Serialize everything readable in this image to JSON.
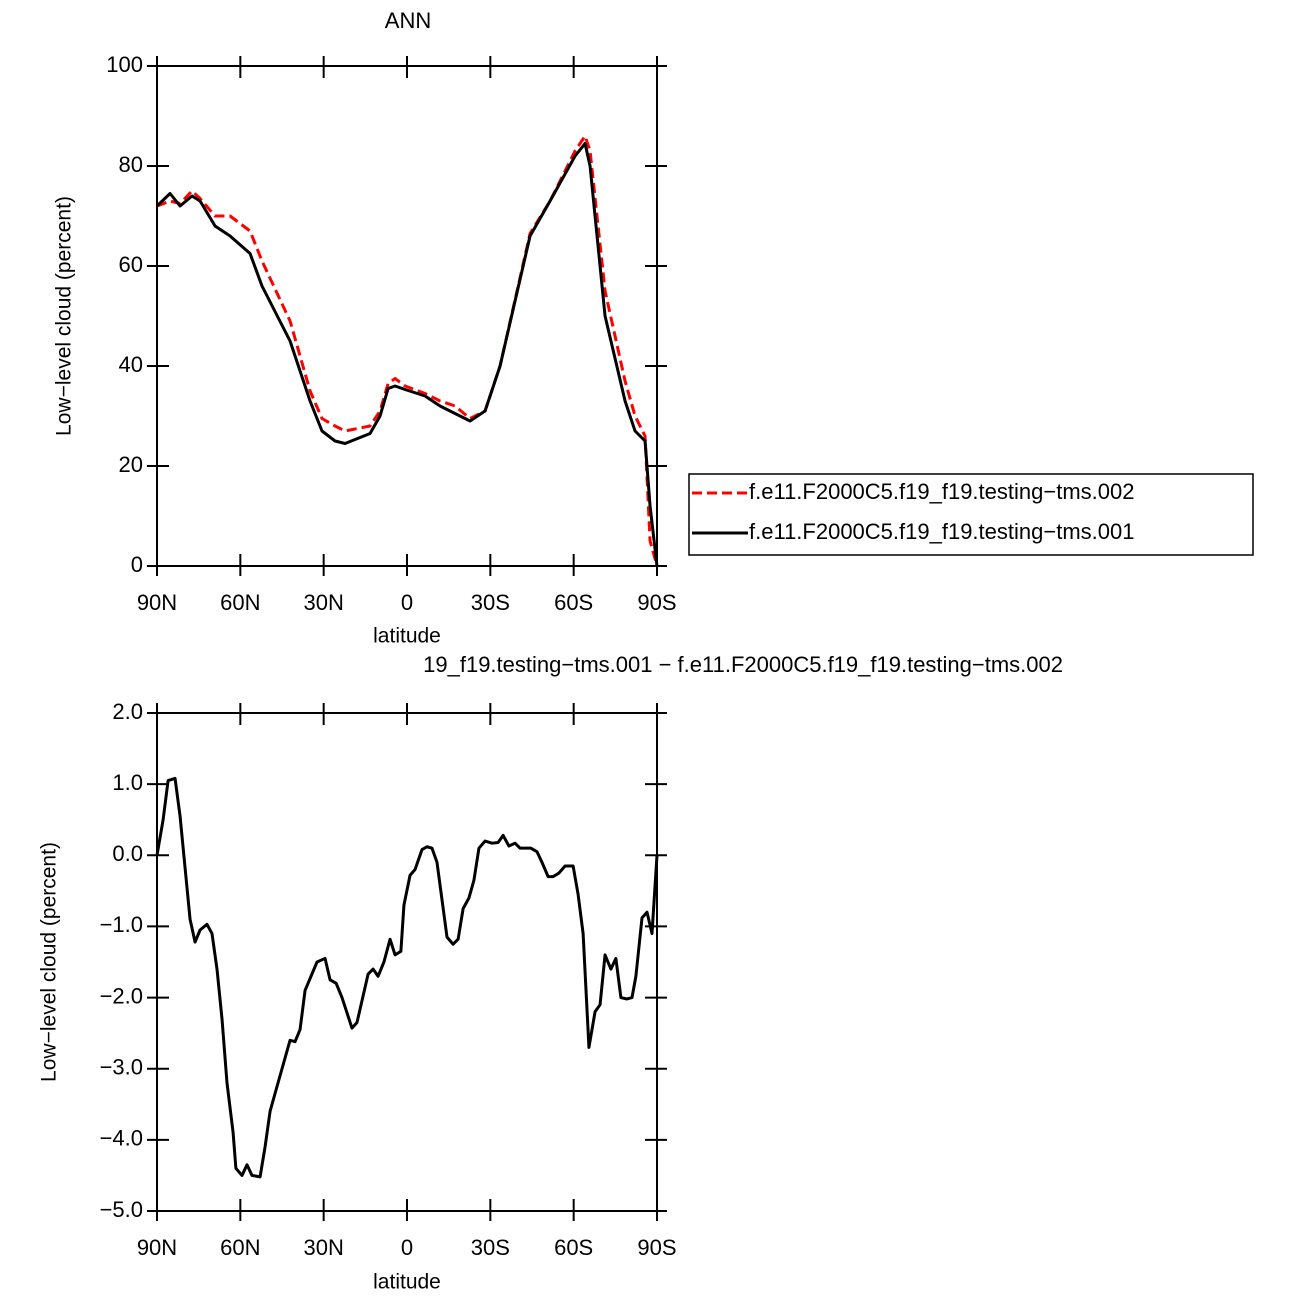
{
  "chart_data": [
    {
      "type": "line",
      "title": "ANN",
      "xlabel": "latitude",
      "ylabel": "Low−level cloud (percent)",
      "x": [
        90,
        85.3,
        81.7,
        77.4,
        74.5,
        69.1,
        63.7,
        56.5,
        52.2,
        42.1,
        34.9,
        30.6,
        25.9,
        22.3,
        13.3,
        9.7,
        6.8,
        4.3,
        0.7,
        -6.5,
        -11.9,
        -17.3,
        -22.7,
        -28.1,
        -33.5,
        -44.3,
        -51.5,
        -60.5,
        -64.1,
        -65.9,
        -71.3,
        -78.5,
        -82.1,
        -85.7,
        -87.5,
        -90
      ],
      "series": [
        {
          "name": "f.e11.F2000C5.f19_f19.testing−tms.002",
          "color": "#ff0000",
          "dash": true,
          "values": [
            72,
            73,
            72.5,
            75,
            73.5,
            70,
            70,
            67,
            61,
            49,
            35,
            29.5,
            28,
            27,
            28,
            31,
            36.5,
            37.5,
            36,
            34.5,
            33,
            32,
            29.5,
            31,
            40,
            66.5,
            73,
            83,
            86,
            83,
            55,
            37,
            30,
            26,
            5,
            0
          ]
        },
        {
          "name": "f.e11.F2000C5.f19_f19.testing−tms.001",
          "color": "#000000",
          "dash": false,
          "values": [
            72,
            74.5,
            72,
            74,
            73,
            68,
            66,
            62.5,
            56,
            45,
            33,
            27,
            25,
            24.5,
            26.5,
            30,
            35.5,
            36,
            35.3,
            34,
            32,
            30.5,
            29,
            31,
            40,
            66,
            73,
            82,
            84.5,
            80,
            50,
            33,
            27,
            25,
            12,
            0
          ]
        }
      ],
      "xlim": [
        90,
        -90
      ],
      "xticks": [
        {
          "value": 90,
          "label": "90N"
        },
        {
          "value": 60,
          "label": "60N"
        },
        {
          "value": 30,
          "label": "30N"
        },
        0,
        {
          "value": -30,
          "label": "30S"
        },
        {
          "value": -60,
          "label": "60S"
        },
        {
          "value": -90,
          "label": "90S"
        }
      ],
      "ylim": [
        0,
        100
      ],
      "yticks": [
        0,
        20,
        40,
        60,
        80,
        100
      ],
      "legend": "right"
    },
    {
      "type": "line",
      "title": "19_f19.testing−tms.001 − f.e11.F2000C5.f19_f19.testing−tms.002",
      "xlabel": "latitude",
      "ylabel": "Low−level cloud (percent)",
      "x": [
        90,
        87.8,
        86.0,
        83.5,
        81.7,
        78.1,
        76.3,
        74.5,
        72.0,
        70.2,
        68.4,
        66.6,
        64.8,
        62.6,
        61.6,
        59.4,
        57.6,
        55.8,
        52.9,
        51.1,
        49.3,
        46.8,
        42.1,
        40.3,
        38.5,
        36.7,
        32.4,
        29.5,
        27.7,
        25.5,
        23.4,
        19.8,
        18.0,
        14.0,
        12.2,
        10.4,
        8.3,
        6.1,
        4.3,
        2.2,
        1.1,
        -1.1,
        -2.9,
        -5.4,
        -7.2,
        -9.0,
        -10.8,
        -14.4,
        -16.6,
        -18.4,
        -20.2,
        -22.3,
        -24.1,
        -25.9,
        -28.1,
        -30.6,
        -32.8,
        -34.6,
        -36.7,
        -38.9,
        -40.7,
        -44.6,
        -46.8,
        -48.6,
        -50.8,
        -52.6,
        -54.7,
        -56.9,
        -59.8,
        -61.6,
        -63.4,
        -65.5,
        -67.7,
        -69.5,
        -71.3,
        -73.4,
        -75.2,
        -77.0,
        -79.2,
        -81.0,
        -82.4,
        -84.6,
        -86.4,
        -88.2,
        -90
      ],
      "series": [
        {
          "color": "#000000",
          "dash": false,
          "values": [
            0,
            0.5,
            1.05,
            1.08,
            0.55,
            -0.9,
            -1.22,
            -1.05,
            -0.97,
            -1.1,
            -1.6,
            -2.3,
            -3.2,
            -3.9,
            -4.4,
            -4.5,
            -4.35,
            -4.5,
            -4.52,
            -4.1,
            -3.6,
            -3.25,
            -2.6,
            -2.62,
            -2.45,
            -1.9,
            -1.5,
            -1.45,
            -1.75,
            -1.8,
            -2.0,
            -2.43,
            -2.35,
            -1.67,
            -1.6,
            -1.7,
            -1.5,
            -1.18,
            -1.4,
            -1.35,
            -0.7,
            -0.28,
            -0.2,
            0.08,
            0.12,
            0.1,
            -0.1,
            -1.15,
            -1.25,
            -1.18,
            -0.75,
            -0.6,
            -0.35,
            0.1,
            0.2,
            0.17,
            0.18,
            0.28,
            0.13,
            0.17,
            0.1,
            0.1,
            0.05,
            -0.1,
            -0.3,
            -0.3,
            -0.25,
            -0.15,
            -0.15,
            -0.55,
            -1.1,
            -2.7,
            -2.2,
            -2.1,
            -1.4,
            -1.6,
            -1.45,
            -2.0,
            -2.02,
            -2.0,
            -1.7,
            -0.88,
            -0.8,
            -1.1,
            0.0
          ]
        }
      ],
      "xlim": [
        90,
        -90
      ],
      "xticks": [
        {
          "value": 90,
          "label": "90N"
        },
        {
          "value": 60,
          "label": "60N"
        },
        {
          "value": 30,
          "label": "30N"
        },
        0,
        {
          "value": -30,
          "label": "30S"
        },
        {
          "value": -60,
          "label": "60S"
        },
        {
          "value": -90,
          "label": "90S"
        }
      ],
      "ylim": [
        -5,
        2
      ],
      "yticks": [
        {
          "value": -5,
          "label": "−5.0"
        },
        {
          "value": -4,
          "label": "−4.0"
        },
        {
          "value": -3,
          "label": "−3.0"
        },
        {
          "value": -2,
          "label": "−2.0"
        },
        {
          "value": -1,
          "label": "−1.0"
        },
        {
          "value": 0,
          "label": "0.0"
        },
        {
          "value": 1,
          "label": "1.0"
        },
        {
          "value": 2,
          "label": "2.0"
        }
      ]
    }
  ]
}
